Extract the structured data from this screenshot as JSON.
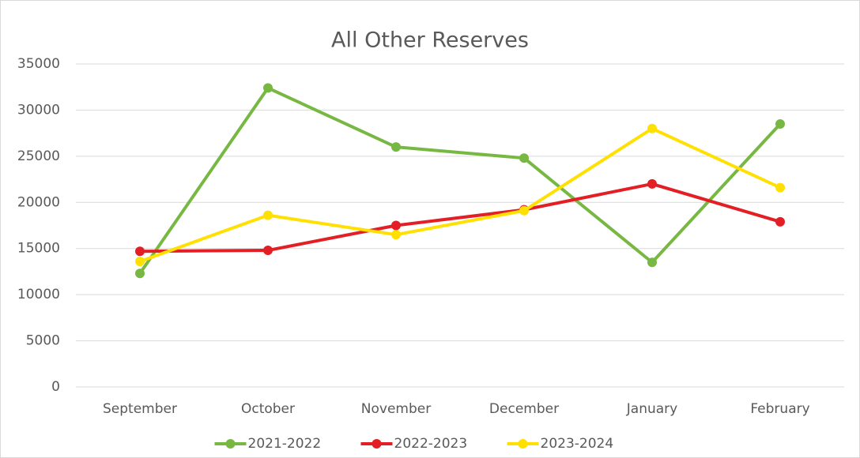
{
  "chart_data": {
    "type": "line",
    "title": "All Other Reserves",
    "categories": [
      "September",
      "October",
      "November",
      "December",
      "January",
      "February"
    ],
    "series": [
      {
        "name": "2021-2022",
        "color": "#77b843",
        "values": [
          12300,
          32400,
          26000,
          24800,
          13500,
          28500
        ]
      },
      {
        "name": "2022-2023",
        "color": "#e31e24",
        "values": [
          14700,
          14800,
          17500,
          19200,
          22000,
          17900
        ]
      },
      {
        "name": "2023-2024",
        "color": "#ffe000",
        "values": [
          13600,
          18600,
          16500,
          19100,
          28000,
          21600
        ]
      }
    ],
    "ylim": [
      0,
      35000
    ],
    "yticks": [
      0,
      5000,
      10000,
      15000,
      20000,
      25000,
      30000,
      35000
    ],
    "grid": true,
    "legend": "bottom"
  }
}
